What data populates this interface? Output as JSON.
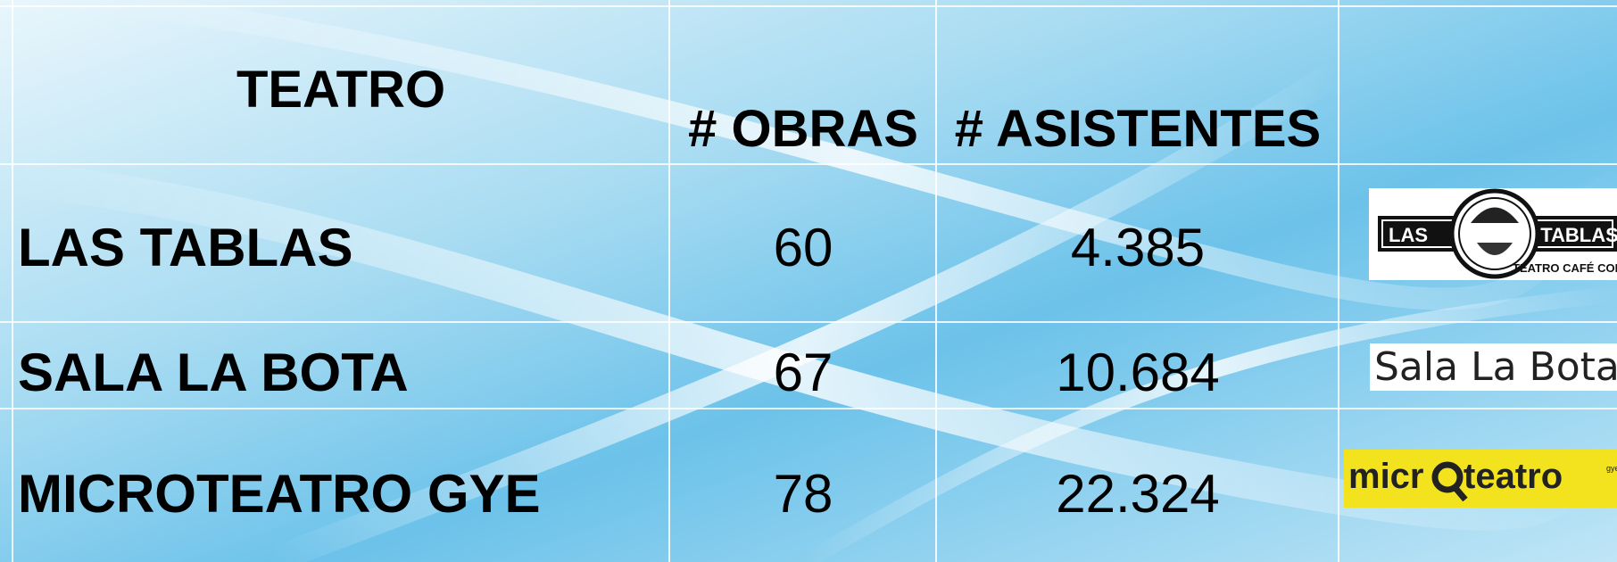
{
  "table": {
    "header": [
      "TEATRO",
      "# OBRAS",
      "# ASISTENTES"
    ],
    "rows": [
      [
        "LAS TABLAS",
        60,
        "4.385"
      ],
      [
        "SALA LA BOTA",
        67,
        "10.684"
      ],
      [
        "MICROTEATRO GYE",
        78,
        "22.324"
      ]
    ]
  },
  "logos": [
    {
      "left": "LAS",
      "right": "TABLAS",
      "sub": "TEATRO CAFÉ CONCERT"
    },
    {
      "text": "Sala La Bota"
    },
    {
      "left": "micr",
      "right": "teatro",
      "sub": "gye"
    }
  ]
}
